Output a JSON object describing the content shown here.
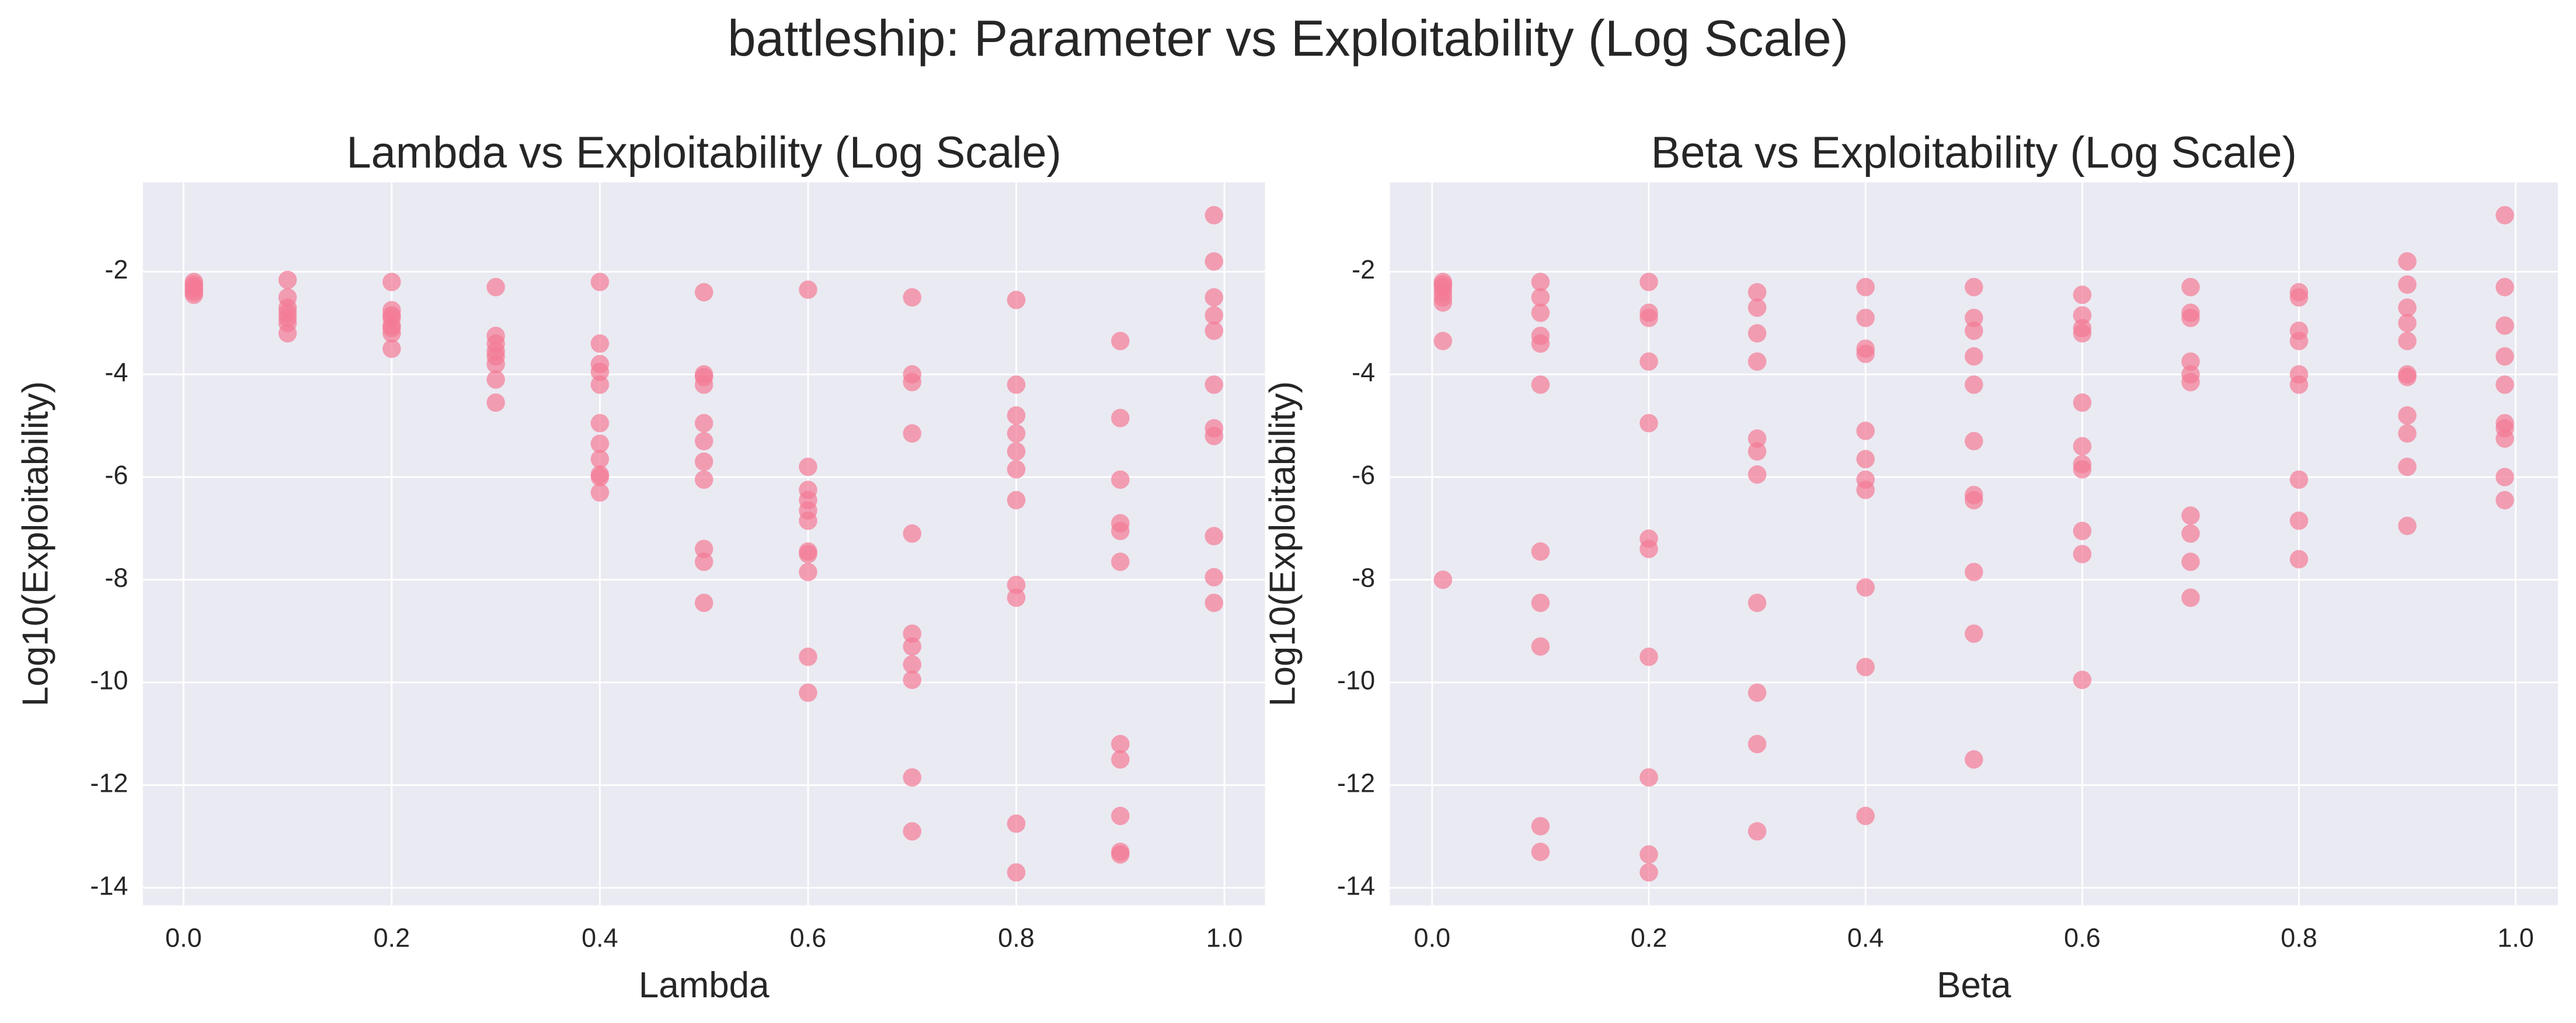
{
  "title": "battleship: Parameter vs Exploitability (Log Scale)",
  "chart_data": [
    {
      "type": "scatter",
      "title": "Lambda vs Exploitability (Log Scale)",
      "x_label": "Lambda",
      "y_label": "Log10(Exploitability)",
      "xlim": [
        -0.039,
        1.039
      ],
      "ylim": [
        -14.34,
        -0.26
      ],
      "xticks": [
        {
          "value": 0,
          "label": "0.0"
        },
        0.2,
        0.4,
        0.6,
        0.8,
        {
          "value": 1,
          "label": "1.0"
        }
      ],
      "yticks": [
        -14,
        -12,
        -10,
        -8,
        -6,
        -4,
        -2
      ],
      "grid": true,
      "series": [
        {
          "color": "#f37b96",
          "x": [
            0.01,
            0.01,
            0.01,
            0.01,
            0.01,
            0.01,
            0.1,
            0.1,
            0.1,
            0.1,
            0.1,
            0.1,
            0.1,
            0.2,
            0.2,
            0.2,
            0.2,
            0.2,
            0.2,
            0.2,
            0.2,
            0.3,
            0.3,
            0.3,
            0.3,
            0.3,
            0.3,
            0.3,
            0.3,
            0.4,
            0.4,
            0.4,
            0.4,
            0.4,
            0.4,
            0.4,
            0.4,
            0.4,
            0.4,
            0.4,
            0.5,
            0.5,
            0.5,
            0.5,
            0.5,
            0.5,
            0.5,
            0.5,
            0.5,
            0.5,
            0.5,
            0.6,
            0.6,
            0.6,
            0.6,
            0.6,
            0.6,
            0.6,
            0.6,
            0.6,
            0.6,
            0.6,
            0.7,
            0.7,
            0.7,
            0.7,
            0.7,
            0.7,
            0.7,
            0.7,
            0.7,
            0.7,
            0.7,
            0.8,
            0.8,
            0.8,
            0.8,
            0.8,
            0.8,
            0.8,
            0.8,
            0.8,
            0.8,
            0.8,
            0.9,
            0.9,
            0.9,
            0.9,
            0.9,
            0.9,
            0.9,
            0.9,
            0.9,
            0.9,
            0.9,
            0.99,
            0.99,
            0.99,
            0.99,
            0.99,
            0.99,
            0.99,
            0.99,
            0.99,
            0.99,
            0.99
          ],
          "values": [
            -2.2,
            -2.25,
            -2.3,
            -2.35,
            -2.4,
            -2.45,
            -2.16,
            -2.5,
            -2.7,
            -2.8,
            -2.9,
            -3.0,
            -3.2,
            -2.2,
            -2.75,
            -2.85,
            -2.9,
            -3.05,
            -3.1,
            -3.2,
            -3.5,
            -2.3,
            -3.25,
            -3.4,
            -3.55,
            -3.65,
            -3.8,
            -4.1,
            -4.55,
            -2.2,
            -3.4,
            -3.8,
            -3.95,
            -4.2,
            -4.95,
            -5.35,
            -5.65,
            -5.95,
            -6.0,
            -6.3,
            -2.4,
            -4.0,
            -4.05,
            -4.2,
            -4.95,
            -5.3,
            -5.7,
            -6.05,
            -7.4,
            -7.65,
            -8.45,
            -2.35,
            -5.8,
            -6.25,
            -6.45,
            -6.65,
            -6.85,
            -7.45,
            -7.5,
            -7.85,
            -9.5,
            -10.2,
            -2.5,
            -4.0,
            -4.15,
            -5.15,
            -7.1,
            -9.05,
            -9.3,
            -9.65,
            -9.95,
            -11.85,
            -12.9,
            -2.55,
            -4.2,
            -4.8,
            -5.15,
            -5.5,
            -5.85,
            -6.45,
            -8.1,
            -8.35,
            -12.75,
            -13.7,
            -3.35,
            -4.85,
            -6.05,
            -6.9,
            -7.05,
            -7.65,
            -11.2,
            -11.5,
            -12.6,
            -13.3,
            -13.35,
            -0.9,
            -1.8,
            -2.5,
            -2.85,
            -3.15,
            -4.2,
            -5.05,
            -5.2,
            -7.15,
            -7.95,
            -8.45
          ]
        }
      ]
    },
    {
      "type": "scatter",
      "title": "Beta vs Exploitability (Log Scale)",
      "x_label": "Beta",
      "y_label": "Log10(Exploitability)",
      "xlim": [
        -0.039,
        1.039
      ],
      "ylim": [
        -14.34,
        -0.26
      ],
      "xticks": [
        {
          "value": 0,
          "label": "0.0"
        },
        0.2,
        0.4,
        0.6,
        0.8,
        {
          "value": 1,
          "label": "1.0"
        }
      ],
      "yticks": [
        -14,
        -12,
        -10,
        -8,
        -6,
        -4,
        -2
      ],
      "grid": true,
      "series": [
        {
          "color": "#f37b96",
          "x": [
            0.01,
            0.01,
            0.01,
            0.01,
            0.01,
            0.01,
            0.01,
            0.01,
            0.1,
            0.1,
            0.1,
            0.1,
            0.1,
            0.1,
            0.1,
            0.1,
            0.1,
            0.1,
            0.1,
            0.2,
            0.2,
            0.2,
            0.2,
            0.2,
            0.2,
            0.2,
            0.2,
            0.2,
            0.2,
            0.2,
            0.3,
            0.3,
            0.3,
            0.3,
            0.3,
            0.3,
            0.3,
            0.3,
            0.3,
            0.3,
            0.3,
            0.4,
            0.4,
            0.4,
            0.4,
            0.4,
            0.4,
            0.4,
            0.4,
            0.4,
            0.4,
            0.4,
            0.5,
            0.5,
            0.5,
            0.5,
            0.5,
            0.5,
            0.5,
            0.5,
            0.5,
            0.5,
            0.5,
            0.6,
            0.6,
            0.6,
            0.6,
            0.6,
            0.6,
            0.6,
            0.6,
            0.6,
            0.6,
            0.6,
            0.7,
            0.7,
            0.7,
            0.7,
            0.7,
            0.7,
            0.7,
            0.7,
            0.7,
            0.7,
            0.8,
            0.8,
            0.8,
            0.8,
            0.8,
            0.8,
            0.8,
            0.8,
            0.8,
            0.9,
            0.9,
            0.9,
            0.9,
            0.9,
            0.9,
            0.9,
            0.9,
            0.9,
            0.9,
            0.9,
            0.99,
            0.99,
            0.99,
            0.99,
            0.99,
            0.99,
            0.99,
            0.99,
            0.99,
            0.99
          ],
          "values": [
            -2.2,
            -2.25,
            -2.3,
            -2.4,
            -2.5,
            -2.6,
            -3.35,
            -8.0,
            -2.2,
            -2.5,
            -2.8,
            -3.25,
            -3.4,
            -4.2,
            -7.45,
            -8.45,
            -9.3,
            -12.8,
            -13.3,
            -2.2,
            -2.8,
            -2.9,
            -3.75,
            -4.95,
            -7.2,
            -7.4,
            -9.5,
            -11.85,
            -13.35,
            -13.7,
            -2.4,
            -2.7,
            -3.2,
            -3.75,
            -5.25,
            -5.5,
            -5.95,
            -8.45,
            -10.2,
            -11.2,
            -12.9,
            -2.3,
            -2.9,
            -3.5,
            -3.6,
            -5.1,
            -5.65,
            -6.05,
            -6.25,
            -8.15,
            -9.7,
            -12.6,
            -2.3,
            -2.9,
            -3.15,
            -3.65,
            -4.2,
            -5.3,
            -6.35,
            -6.45,
            -7.85,
            -9.05,
            -11.5,
            -2.45,
            -2.85,
            -3.1,
            -3.2,
            -4.55,
            -5.4,
            -5.75,
            -5.85,
            -7.05,
            -7.5,
            -9.95,
            -2.3,
            -2.8,
            -2.9,
            -3.75,
            -4.0,
            -4.15,
            -6.75,
            -7.1,
            -7.65,
            -8.35,
            -2.4,
            -2.5,
            -3.15,
            -3.35,
            -4.0,
            -4.2,
            -6.05,
            -6.85,
            -7.6,
            -1.8,
            -2.25,
            -2.7,
            -3.0,
            -3.35,
            -4.0,
            -4.05,
            -4.8,
            -5.15,
            -5.8,
            -6.95,
            -0.9,
            -2.3,
            -3.05,
            -3.65,
            -4.2,
            -4.95,
            -5.05,
            -5.25,
            -6.0,
            -6.45
          ]
        }
      ]
    }
  ]
}
